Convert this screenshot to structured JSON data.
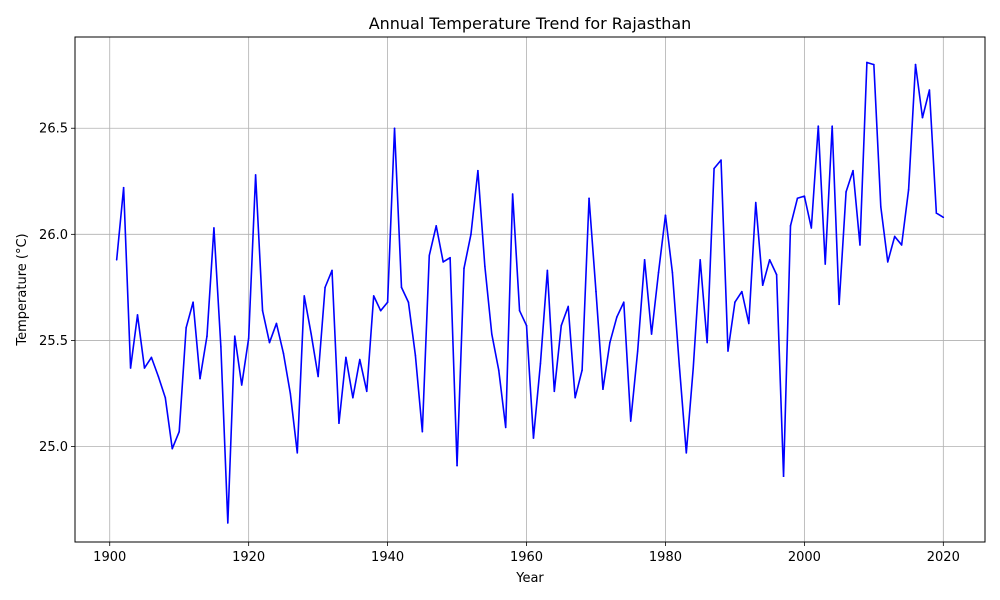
{
  "chart_data": {
    "type": "line",
    "title": "Annual Temperature Trend for Rajasthan",
    "xlabel": "Year",
    "ylabel": "Temperature (°C)",
    "xlim": [
      1895,
      2026
    ],
    "ylim": [
      24.55,
      26.93
    ],
    "xticks": [
      1900,
      1920,
      1940,
      1960,
      1980,
      2000,
      2020
    ],
    "yticks": [
      25.0,
      25.5,
      26.0,
      26.5
    ],
    "xtick_labels": [
      "1900",
      "1920",
      "1940",
      "1960",
      "1980",
      "2000",
      "2020"
    ],
    "ytick_labels": [
      "25.0",
      "25.5",
      "26.0",
      "26.5"
    ],
    "grid": true,
    "series": [
      {
        "color": "#0000ff",
        "x": [
          1901,
          1902,
          1903,
          1904,
          1905,
          1906,
          1907,
          1908,
          1909,
          1910,
          1911,
          1912,
          1913,
          1914,
          1915,
          1916,
          1917,
          1918,
          1919,
          1920,
          1921,
          1922,
          1923,
          1924,
          1925,
          1926,
          1927,
          1928,
          1929,
          1930,
          1931,
          1932,
          1933,
          1934,
          1935,
          1936,
          1937,
          1938,
          1939,
          1940,
          1941,
          1942,
          1943,
          1944,
          1945,
          1946,
          1947,
          1948,
          1949,
          1950,
          1951,
          1952,
          1953,
          1954,
          1955,
          1956,
          1957,
          1958,
          1959,
          1960,
          1961,
          1962,
          1963,
          1964,
          1965,
          1966,
          1967,
          1968,
          1969,
          1970,
          1971,
          1972,
          1973,
          1974,
          1975,
          1976,
          1977,
          1978,
          1979,
          1980,
          1981,
          1982,
          1983,
          1984,
          1985,
          1986,
          1987,
          1988,
          1989,
          1990,
          1991,
          1992,
          1993,
          1994,
          1995,
          1996,
          1997,
          1998,
          1999,
          2000,
          2001,
          2002,
          2003,
          2004,
          2005,
          2006,
          2007,
          2008,
          2009,
          2010,
          2011,
          2012,
          2013,
          2014,
          2015,
          2016,
          2017,
          2018,
          2019,
          2020
        ],
        "values": [
          25.88,
          26.22,
          25.37,
          25.62,
          25.37,
          25.42,
          25.33,
          25.23,
          24.99,
          25.07,
          25.56,
          25.68,
          25.32,
          25.52,
          26.03,
          25.47,
          24.64,
          25.52,
          25.29,
          25.51,
          26.28,
          25.64,
          25.49,
          25.58,
          25.44,
          25.25,
          24.97,
          25.71,
          25.53,
          25.33,
          25.75,
          25.83,
          25.11,
          25.42,
          25.23,
          25.41,
          25.26,
          25.71,
          25.64,
          25.68,
          26.5,
          25.75,
          25.68,
          25.43,
          25.07,
          25.9,
          26.04,
          25.87,
          25.89,
          24.91,
          25.84,
          26.0,
          26.3,
          25.85,
          25.53,
          25.36,
          25.09,
          26.19,
          25.64,
          25.57,
          25.04,
          25.39,
          25.83,
          25.26,
          25.57,
          25.66,
          25.23,
          25.36,
          26.17,
          25.73,
          25.27,
          25.49,
          25.61,
          25.68,
          25.12,
          25.45,
          25.88,
          25.53,
          25.82,
          26.09,
          25.82,
          25.38,
          24.97,
          25.37,
          25.88,
          25.49,
          26.31,
          26.35,
          25.45,
          25.68,
          25.73,
          25.58,
          26.15,
          25.76,
          25.88,
          25.81,
          24.86,
          26.04,
          26.17,
          26.18,
          26.03,
          26.51,
          25.86,
          26.51,
          25.67,
          26.2,
          26.3,
          25.95,
          26.81,
          26.8,
          26.13,
          25.87,
          25.99,
          25.95,
          26.21,
          26.8,
          26.55,
          26.68,
          26.1,
          26.08
        ]
      }
    ]
  }
}
